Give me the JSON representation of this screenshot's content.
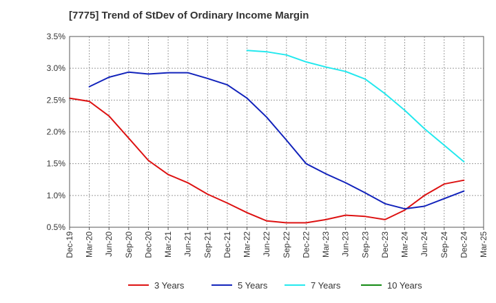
{
  "chart_data": {
    "type": "line",
    "title": "[7775]  Trend of StDev of Ordinary Income Margin",
    "xlabel": "",
    "ylabel": "",
    "x_ticks": [
      "Dec-19",
      "Mar-20",
      "Jun-20",
      "Sep-20",
      "Dec-20",
      "Mar-21",
      "Jun-21",
      "Sep-21",
      "Dec-21",
      "Mar-22",
      "Jun-22",
      "Sep-22",
      "Dec-22",
      "Mar-23",
      "Jun-23",
      "Sep-23",
      "Dec-23",
      "Mar-24",
      "Jun-24",
      "Sep-24",
      "Dec-24",
      "Mar-25"
    ],
    "y_ticks": [
      "0.5%",
      "1.0%",
      "1.5%",
      "2.0%",
      "2.5%",
      "3.0%",
      "3.5%"
    ],
    "ylim": [
      0.5,
      3.5
    ],
    "y_unit": "%",
    "grid": "dashed vertical and horizontal",
    "legend_position": "bottom",
    "series": [
      {
        "name": "3 Years",
        "color": "#dd1111",
        "points": [
          [
            "Dec-19",
            2.53
          ],
          [
            "Mar-20",
            2.48
          ],
          [
            "Jun-20",
            2.25
          ],
          [
            "Sep-20",
            1.9
          ],
          [
            "Dec-20",
            1.55
          ],
          [
            "Mar-21",
            1.33
          ],
          [
            "Jun-21",
            1.2
          ],
          [
            "Sep-21",
            1.02
          ],
          [
            "Dec-21",
            0.88
          ],
          [
            "Mar-22",
            0.73
          ],
          [
            "Jun-22",
            0.6
          ],
          [
            "Sep-22",
            0.57
          ],
          [
            "Dec-22",
            0.57
          ],
          [
            "Mar-23",
            0.62
          ],
          [
            "Jun-23",
            0.69
          ],
          [
            "Sep-23",
            0.67
          ],
          [
            "Dec-23",
            0.62
          ],
          [
            "Mar-24",
            0.77
          ],
          [
            "Jun-24",
            1.0
          ],
          [
            "Sep-24",
            1.18
          ],
          [
            "Dec-24",
            1.24
          ]
        ]
      },
      {
        "name": "5 Years",
        "color": "#1122bb",
        "points": [
          [
            "Mar-20",
            2.71
          ],
          [
            "Jun-20",
            2.86
          ],
          [
            "Sep-20",
            2.94
          ],
          [
            "Dec-20",
            2.91
          ],
          [
            "Mar-21",
            2.93
          ],
          [
            "Jun-21",
            2.93
          ],
          [
            "Sep-21",
            2.84
          ],
          [
            "Dec-21",
            2.74
          ],
          [
            "Mar-22",
            2.53
          ],
          [
            "Jun-22",
            2.23
          ],
          [
            "Sep-22",
            1.87
          ],
          [
            "Dec-22",
            1.5
          ],
          [
            "Mar-23",
            1.34
          ],
          [
            "Jun-23",
            1.2
          ],
          [
            "Sep-23",
            1.04
          ],
          [
            "Dec-23",
            0.87
          ],
          [
            "Mar-24",
            0.79
          ],
          [
            "Jun-24",
            0.83
          ],
          [
            "Sep-24",
            0.95
          ],
          [
            "Dec-24",
            1.07
          ]
        ]
      },
      {
        "name": "7 Years",
        "color": "#22e8ee",
        "points": [
          [
            "Mar-22",
            3.28
          ],
          [
            "Jun-22",
            3.26
          ],
          [
            "Sep-22",
            3.21
          ],
          [
            "Dec-22",
            3.1
          ],
          [
            "Mar-23",
            3.02
          ],
          [
            "Jun-23",
            2.95
          ],
          [
            "Sep-23",
            2.83
          ],
          [
            "Dec-23",
            2.6
          ],
          [
            "Mar-24",
            2.34
          ],
          [
            "Jun-24",
            2.05
          ],
          [
            "Sep-24",
            1.79
          ],
          [
            "Dec-24",
            1.53
          ]
        ]
      },
      {
        "name": "10 Years",
        "color": "#118811",
        "points": []
      }
    ]
  }
}
